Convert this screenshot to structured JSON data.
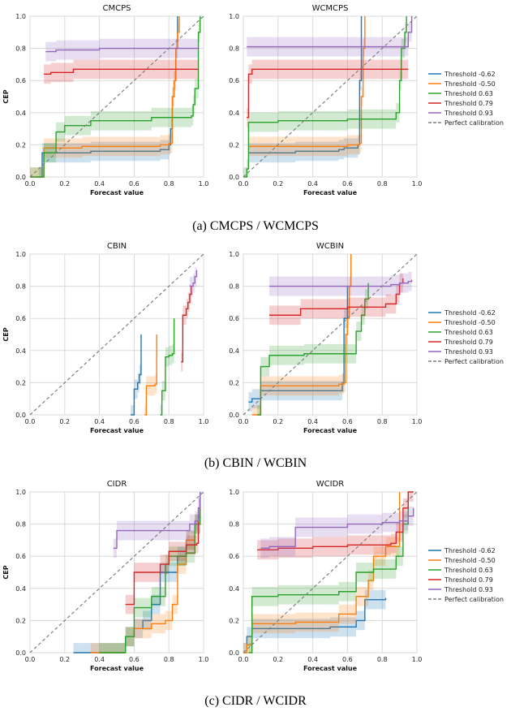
{
  "captions": [
    "(a) CMCPS / WCMCPS",
    "(b) CBIN / WCBIN",
    "(c) CIDR / WCIDR"
  ],
  "colors": {
    "t1": "#1f77b4",
    "t2": "#ff7f0e",
    "t3": "#2ca02c",
    "t4": "#d62728",
    "t5": "#9467bd",
    "perfect": "#7f7f7f"
  },
  "legend": [
    "Threshold -0.62",
    "Threshold -0.50",
    "Threshold 0.63",
    "Threshold 0.79",
    "Threshold 0.93",
    "Perfect calibration"
  ],
  "chart_data": [
    {
      "type": "line",
      "title": "CMCPS",
      "xlabel": "Forecast value",
      "ylabel": "CEP",
      "xlim": [
        0,
        1
      ],
      "ylim": [
        0,
        1
      ],
      "xticks": [
        "0.0",
        "0.2",
        "0.4",
        "0.6",
        "0.8",
        "1.0"
      ],
      "yticks": [
        "0.0",
        "0.2",
        "0.4",
        "0.6",
        "0.8",
        "1.0"
      ],
      "grid": true,
      "series": [
        {
          "name": "Threshold -0.62",
          "color": "#1f77b4",
          "x": [
            0.05,
            0.07,
            0.15,
            0.35,
            0.75,
            0.8,
            0.81,
            0.82,
            0.83,
            0.84,
            0.85
          ],
          "y": [
            0.0,
            0.15,
            0.15,
            0.16,
            0.17,
            0.2,
            0.3,
            0.5,
            0.6,
            0.8,
            1.0
          ]
        },
        {
          "name": "Threshold -0.50",
          "color": "#ff7f0e",
          "x": [
            0.0,
            0.07,
            0.08,
            0.3,
            0.75,
            0.8,
            0.82,
            0.83,
            0.84,
            0.85,
            0.86
          ],
          "y": [
            0.0,
            0.0,
            0.18,
            0.19,
            0.2,
            0.21,
            0.5,
            0.6,
            0.8,
            0.9,
            1.0
          ]
        },
        {
          "name": "Threshold 0.63",
          "color": "#2ca02c",
          "x": [
            0.0,
            0.05,
            0.08,
            0.15,
            0.2,
            0.35,
            0.7,
            0.93,
            0.94,
            0.95,
            0.97,
            0.98
          ],
          "y": [
            0.0,
            0.0,
            0.15,
            0.28,
            0.32,
            0.35,
            0.37,
            0.38,
            0.45,
            0.55,
            0.9,
            1.0
          ]
        },
        {
          "name": "Threshold 0.79",
          "color": "#d62728",
          "x": [
            0.08,
            0.12,
            0.25,
            0.97
          ],
          "y": [
            0.64,
            0.65,
            0.67,
            0.67
          ]
        },
        {
          "name": "Threshold 0.93",
          "color": "#9467bd",
          "x": [
            0.09,
            0.15,
            0.4,
            0.97
          ],
          "y": [
            0.78,
            0.79,
            0.8,
            0.81
          ]
        },
        {
          "name": "Perfect calibration",
          "color": "#7f7f7f",
          "dashed": true,
          "x": [
            0,
            1
          ],
          "y": [
            0,
            1
          ]
        }
      ]
    },
    {
      "type": "line",
      "title": "WCMCPS",
      "xlabel": "Forecast value",
      "ylabel": "",
      "xlim": [
        0,
        1
      ],
      "ylim": [
        0,
        1
      ],
      "xticks": [
        "0.0",
        "0.2",
        "0.4",
        "0.6",
        "0.8",
        "1.0"
      ],
      "yticks": [
        "0.0",
        "0.2",
        "0.4",
        "0.6",
        "0.8",
        "1.0"
      ],
      "grid": true,
      "series": [
        {
          "name": "Threshold -0.62",
          "color": "#1f77b4",
          "x": [
            0.03,
            0.3,
            0.55,
            0.58,
            0.66,
            0.67,
            0.68
          ],
          "y": [
            0.15,
            0.16,
            0.17,
            0.18,
            0.2,
            0.6,
            1.0
          ]
        },
        {
          "name": "Threshold -0.50",
          "color": "#ff7f0e",
          "x": [
            0.03,
            0.4,
            0.6,
            0.67,
            0.68,
            0.69,
            0.7
          ],
          "y": [
            0.19,
            0.19,
            0.2,
            0.21,
            0.5,
            0.8,
            1.0
          ]
        },
        {
          "name": "Threshold 0.63",
          "color": "#2ca02c",
          "x": [
            0.0,
            0.02,
            0.03,
            0.2,
            0.6,
            0.88,
            0.9,
            0.91,
            0.93,
            0.94
          ],
          "y": [
            0.0,
            0.05,
            0.34,
            0.35,
            0.36,
            0.4,
            0.6,
            0.8,
            0.9,
            1.0
          ]
        },
        {
          "name": "Threshold 0.79",
          "color": "#d62728",
          "x": [
            0.02,
            0.03,
            0.05,
            0.95
          ],
          "y": [
            0.37,
            0.64,
            0.67,
            0.67
          ]
        },
        {
          "name": "Threshold 0.93",
          "color": "#9467bd",
          "x": [
            0.02,
            0.5,
            0.93,
            0.95,
            0.97
          ],
          "y": [
            0.81,
            0.81,
            0.81,
            0.9,
            1.0
          ]
        },
        {
          "name": "Perfect calibration",
          "color": "#7f7f7f",
          "dashed": true,
          "x": [
            0,
            1
          ],
          "y": [
            0,
            1
          ]
        }
      ]
    },
    {
      "type": "line",
      "title": "CBIN",
      "xlabel": "Forecast value",
      "ylabel": "CEP",
      "xlim": [
        0,
        1
      ],
      "ylim": [
        0,
        1
      ],
      "xticks": [
        "0.0",
        "0.2",
        "0.4",
        "0.6",
        "0.8",
        "1.0"
      ],
      "yticks": [
        "0.0",
        "0.2",
        "0.4",
        "0.6",
        "0.8",
        "1.0"
      ],
      "grid": true,
      "series": [
        {
          "name": "Threshold -0.62",
          "color": "#1f77b4",
          "x": [
            0.58,
            0.6,
            0.62,
            0.63,
            0.64
          ],
          "y": [
            0.0,
            0.16,
            0.2,
            0.25,
            0.5
          ]
        },
        {
          "name": "Threshold -0.50",
          "color": "#ff7f0e",
          "x": [
            0.66,
            0.67,
            0.72,
            0.73
          ],
          "y": [
            0.0,
            0.18,
            0.19,
            0.5
          ]
        },
        {
          "name": "Threshold 0.63",
          "color": "#2ca02c",
          "x": [
            0.75,
            0.76,
            0.78,
            0.8,
            0.82,
            0.83
          ],
          "y": [
            0.0,
            0.15,
            0.36,
            0.37,
            0.38,
            0.6
          ]
        },
        {
          "name": "Threshold 0.79",
          "color": "#d62728",
          "x": [
            0.87,
            0.88,
            0.9,
            0.91,
            0.92,
            0.93
          ],
          "y": [
            0.33,
            0.62,
            0.66,
            0.7,
            0.75,
            0.8
          ]
        },
        {
          "name": "Threshold 0.93",
          "color": "#9467bd",
          "x": [
            0.92,
            0.94,
            0.95,
            0.96
          ],
          "y": [
            0.8,
            0.82,
            0.86,
            0.9
          ]
        },
        {
          "name": "Perfect calibration",
          "color": "#7f7f7f",
          "dashed": true,
          "x": [
            0,
            1
          ],
          "y": [
            0,
            1
          ]
        }
      ]
    },
    {
      "type": "line",
      "title": "WCBIN",
      "xlabel": "Forecast value",
      "ylabel": "",
      "xlim": [
        0,
        1
      ],
      "ylim": [
        0,
        1
      ],
      "xticks": [
        "0.0",
        "0.2",
        "0.4",
        "0.6",
        "0.8",
        "1.0"
      ],
      "yticks": [
        "0.0",
        "0.2",
        "0.4",
        "0.6",
        "0.8",
        "1.0"
      ],
      "grid": true,
      "series": [
        {
          "name": "Threshold -0.62",
          "color": "#1f77b4",
          "x": [
            0.03,
            0.05,
            0.1,
            0.55,
            0.57,
            0.58,
            0.6
          ],
          "y": [
            0.08,
            0.1,
            0.15,
            0.15,
            0.2,
            0.6,
            0.8
          ]
        },
        {
          "name": "Threshold -0.50",
          "color": "#ff7f0e",
          "x": [
            0.05,
            0.1,
            0.55,
            0.58,
            0.59,
            0.6,
            0.61,
            0.62
          ],
          "y": [
            0.0,
            0.18,
            0.19,
            0.2,
            0.5,
            0.6,
            0.8,
            1.0
          ]
        },
        {
          "name": "Threshold 0.63",
          "color": "#2ca02c",
          "x": [
            0.08,
            0.1,
            0.15,
            0.35,
            0.6,
            0.65,
            0.68,
            0.7,
            0.72
          ],
          "y": [
            0.0,
            0.3,
            0.37,
            0.38,
            0.38,
            0.52,
            0.62,
            0.72,
            0.82
          ]
        },
        {
          "name": "Threshold 0.79",
          "color": "#d62728",
          "x": [
            0.15,
            0.33,
            0.6,
            0.82,
            0.88,
            0.9,
            0.92
          ],
          "y": [
            0.62,
            0.66,
            0.67,
            0.69,
            0.75,
            0.82,
            0.85
          ]
        },
        {
          "name": "Threshold 0.93",
          "color": "#9467bd",
          "x": [
            0.15,
            0.6,
            0.85,
            0.9,
            0.95,
            0.97
          ],
          "y": [
            0.8,
            0.8,
            0.81,
            0.82,
            0.83,
            0.84
          ]
        },
        {
          "name": "Perfect calibration",
          "color": "#7f7f7f",
          "dashed": true,
          "x": [
            0,
            1
          ],
          "y": [
            0,
            1
          ]
        }
      ]
    },
    {
      "type": "line",
      "title": "CIDR",
      "xlabel": "Forecast value",
      "ylabel": "CEP",
      "xlim": [
        0,
        1
      ],
      "ylim": [
        0,
        1
      ],
      "xticks": [
        "0.0",
        "0.2",
        "0.4",
        "0.6",
        "0.8",
        "1.0"
      ],
      "yticks": [
        "0.0",
        "0.2",
        "0.4",
        "0.6",
        "0.8",
        "1.0"
      ],
      "grid": true,
      "series": [
        {
          "name": "Threshold -0.62",
          "color": "#1f77b4",
          "x": [
            0.25,
            0.45,
            0.55,
            0.6,
            0.65,
            0.7,
            0.75,
            0.85,
            0.9,
            0.95,
            0.98
          ],
          "y": [
            0.0,
            0.0,
            0.1,
            0.15,
            0.2,
            0.3,
            0.5,
            0.6,
            0.7,
            0.8,
            1.0
          ]
        },
        {
          "name": "Threshold -0.50",
          "color": "#ff7f0e",
          "x": [
            0.35,
            0.45,
            0.55,
            0.6,
            0.7,
            0.78,
            0.82,
            0.85,
            0.9,
            0.95,
            0.98
          ],
          "y": [
            0.0,
            0.0,
            0.1,
            0.15,
            0.18,
            0.2,
            0.3,
            0.55,
            0.7,
            0.8,
            1.0
          ]
        },
        {
          "name": "Threshold 0.63",
          "color": "#2ca02c",
          "x": [
            0.4,
            0.5,
            0.55,
            0.6,
            0.65,
            0.7,
            0.78,
            0.8,
            0.9,
            0.95,
            0.98
          ],
          "y": [
            0.0,
            0.0,
            0.1,
            0.28,
            0.28,
            0.35,
            0.55,
            0.6,
            0.62,
            0.8,
            1.0
          ]
        },
        {
          "name": "Threshold 0.79",
          "color": "#d62728",
          "x": [
            0.55,
            0.6,
            0.75,
            0.8,
            0.9,
            0.96,
            0.97,
            0.98
          ],
          "y": [
            0.3,
            0.5,
            0.55,
            0.63,
            0.67,
            0.68,
            0.9,
            1.0
          ]
        },
        {
          "name": "Threshold 0.93",
          "color": "#9467bd",
          "x": [
            0.48,
            0.5,
            0.85,
            0.92,
            0.95,
            0.97,
            0.98
          ],
          "y": [
            0.65,
            0.76,
            0.76,
            0.8,
            0.82,
            0.9,
            1.0
          ]
        },
        {
          "name": "Perfect calibration",
          "color": "#7f7f7f",
          "dashed": true,
          "x": [
            0,
            1
          ],
          "y": [
            0,
            1
          ]
        }
      ]
    },
    {
      "type": "line",
      "title": "WCIDR",
      "xlabel": "Forecast value",
      "ylabel": "",
      "xlim": [
        0,
        1
      ],
      "ylim": [
        0,
        1
      ],
      "xticks": [
        "0.0",
        "0.2",
        "0.4",
        "0.6",
        "0.8",
        "1.0"
      ],
      "yticks": [
        "0.0",
        "0.2",
        "0.4",
        "0.6",
        "0.8",
        "1.0"
      ],
      "grid": true,
      "series": [
        {
          "name": "Threshold -0.62",
          "color": "#1f77b4",
          "x": [
            0.0,
            0.02,
            0.05,
            0.15,
            0.5,
            0.65,
            0.7,
            0.82
          ],
          "y": [
            0.0,
            0.1,
            0.15,
            0.15,
            0.16,
            0.2,
            0.33,
            0.34
          ]
        },
        {
          "name": "Threshold -0.50",
          "color": "#ff7f0e",
          "x": [
            0.0,
            0.02,
            0.05,
            0.3,
            0.55,
            0.65,
            0.72,
            0.75,
            0.82,
            0.9
          ],
          "y": [
            0.0,
            0.05,
            0.18,
            0.19,
            0.24,
            0.35,
            0.45,
            0.6,
            0.66,
            1.0
          ]
        },
        {
          "name": "Threshold 0.63",
          "color": "#2ca02c",
          "x": [
            0.03,
            0.05,
            0.2,
            0.55,
            0.65,
            0.75,
            0.88,
            0.92,
            0.95
          ],
          "y": [
            0.0,
            0.35,
            0.36,
            0.38,
            0.5,
            0.52,
            0.6,
            0.8,
            1.0
          ]
        },
        {
          "name": "Threshold 0.79",
          "color": "#d62728",
          "x": [
            0.08,
            0.2,
            0.4,
            0.6,
            0.85,
            0.88,
            0.92,
            0.95,
            0.98
          ],
          "y": [
            0.64,
            0.65,
            0.66,
            0.67,
            0.68,
            0.75,
            0.9,
            1.0,
            1.0
          ]
        },
        {
          "name": "Threshold 0.93",
          "color": "#9467bd",
          "x": [
            0.1,
            0.15,
            0.3,
            0.6,
            0.8,
            0.9,
            0.95,
            0.98
          ],
          "y": [
            0.65,
            0.66,
            0.78,
            0.8,
            0.81,
            0.82,
            0.85,
            0.9
          ]
        },
        {
          "name": "Perfect calibration",
          "color": "#7f7f7f",
          "dashed": true,
          "x": [
            0,
            1
          ],
          "y": [
            0,
            1
          ]
        }
      ]
    }
  ]
}
